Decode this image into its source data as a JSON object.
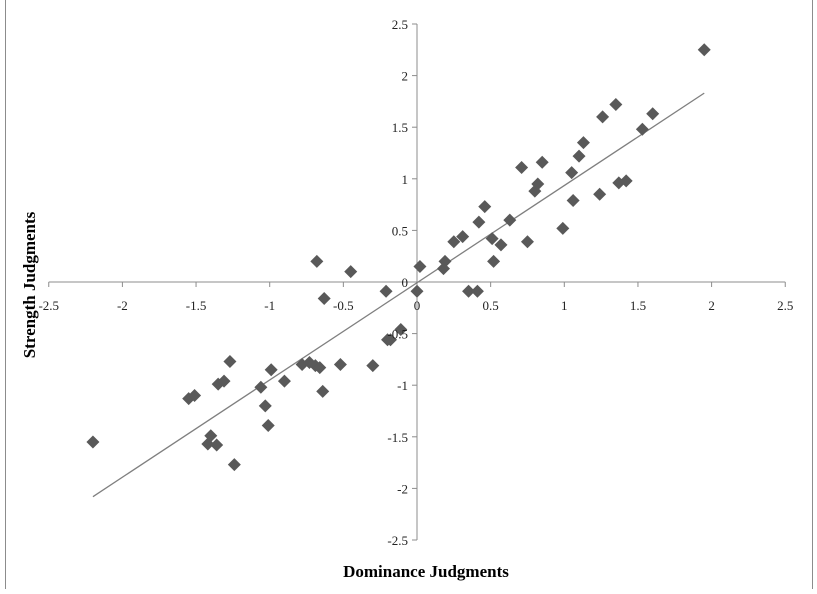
{
  "chart_data": {
    "type": "scatter",
    "xlabel": "Dominance Judgments",
    "ylabel": "Strength Judgments",
    "xlim": [
      -2.5,
      2.5
    ],
    "ylim": [
      -2.5,
      2.5
    ],
    "xticks": [
      -2.5,
      -2,
      -1.5,
      -1,
      -0.5,
      0,
      0.5,
      1,
      1.5,
      2,
      2.5
    ],
    "yticks": [
      -2.5,
      -2,
      -1.5,
      -1,
      -0.5,
      0,
      0.5,
      1,
      1.5,
      2,
      2.5
    ],
    "grid": false,
    "marker_color": "#595959",
    "trendline": {
      "x": [
        -2.2,
        1.95
      ],
      "y": [
        -2.08,
        1.83
      ],
      "color": "#7f7f7f"
    },
    "points": [
      {
        "x": -2.2,
        "y": -1.55
      },
      {
        "x": -1.55,
        "y": -1.13
      },
      {
        "x": -1.51,
        "y": -1.1
      },
      {
        "x": -1.42,
        "y": -1.57
      },
      {
        "x": -1.4,
        "y": -1.49
      },
      {
        "x": -1.36,
        "y": -1.58
      },
      {
        "x": -1.35,
        "y": -0.99
      },
      {
        "x": -1.31,
        "y": -0.96
      },
      {
        "x": -1.27,
        "y": -0.77
      },
      {
        "x": -1.24,
        "y": -1.77
      },
      {
        "x": -1.06,
        "y": -1.02
      },
      {
        "x": -1.03,
        "y": -1.2
      },
      {
        "x": -1.01,
        "y": -1.39
      },
      {
        "x": -0.99,
        "y": -0.85
      },
      {
        "x": -0.9,
        "y": -0.96
      },
      {
        "x": -0.78,
        "y": -0.8
      },
      {
        "x": -0.73,
        "y": -0.78
      },
      {
        "x": -0.69,
        "y": -0.81
      },
      {
        "x": -0.68,
        "y": 0.2
      },
      {
        "x": -0.66,
        "y": -0.83
      },
      {
        "x": -0.64,
        "y": -1.06
      },
      {
        "x": -0.63,
        "y": -0.16
      },
      {
        "x": -0.52,
        "y": -0.8
      },
      {
        "x": -0.45,
        "y": 0.1
      },
      {
        "x": -0.3,
        "y": -0.81
      },
      {
        "x": -0.21,
        "y": -0.09
      },
      {
        "x": -0.2,
        "y": -0.56
      },
      {
        "x": -0.18,
        "y": -0.56
      },
      {
        "x": -0.11,
        "y": -0.46
      },
      {
        "x": 0.0,
        "y": -0.09
      },
      {
        "x": 0.02,
        "y": 0.15
      },
      {
        "x": 0.18,
        "y": 0.13
      },
      {
        "x": 0.19,
        "y": 0.2
      },
      {
        "x": 0.25,
        "y": 0.39
      },
      {
        "x": 0.31,
        "y": 0.44
      },
      {
        "x": 0.35,
        "y": -0.09
      },
      {
        "x": 0.41,
        "y": -0.09
      },
      {
        "x": 0.42,
        "y": 0.58
      },
      {
        "x": 0.46,
        "y": 0.73
      },
      {
        "x": 0.51,
        "y": 0.42
      },
      {
        "x": 0.52,
        "y": 0.2
      },
      {
        "x": 0.57,
        "y": 0.36
      },
      {
        "x": 0.63,
        "y": 0.6
      },
      {
        "x": 0.71,
        "y": 1.11
      },
      {
        "x": 0.75,
        "y": 0.39
      },
      {
        "x": 0.8,
        "y": 0.88
      },
      {
        "x": 0.82,
        "y": 0.95
      },
      {
        "x": 0.85,
        "y": 1.16
      },
      {
        "x": 0.99,
        "y": 0.52
      },
      {
        "x": 1.05,
        "y": 1.06
      },
      {
        "x": 1.06,
        "y": 0.79
      },
      {
        "x": 1.1,
        "y": 1.22
      },
      {
        "x": 1.13,
        "y": 1.35
      },
      {
        "x": 1.24,
        "y": 0.85
      },
      {
        "x": 1.26,
        "y": 1.6
      },
      {
        "x": 1.35,
        "y": 1.72
      },
      {
        "x": 1.37,
        "y": 0.96
      },
      {
        "x": 1.42,
        "y": 0.98
      },
      {
        "x": 1.53,
        "y": 1.48
      },
      {
        "x": 1.6,
        "y": 1.63
      },
      {
        "x": 1.95,
        "y": 2.25
      }
    ]
  }
}
